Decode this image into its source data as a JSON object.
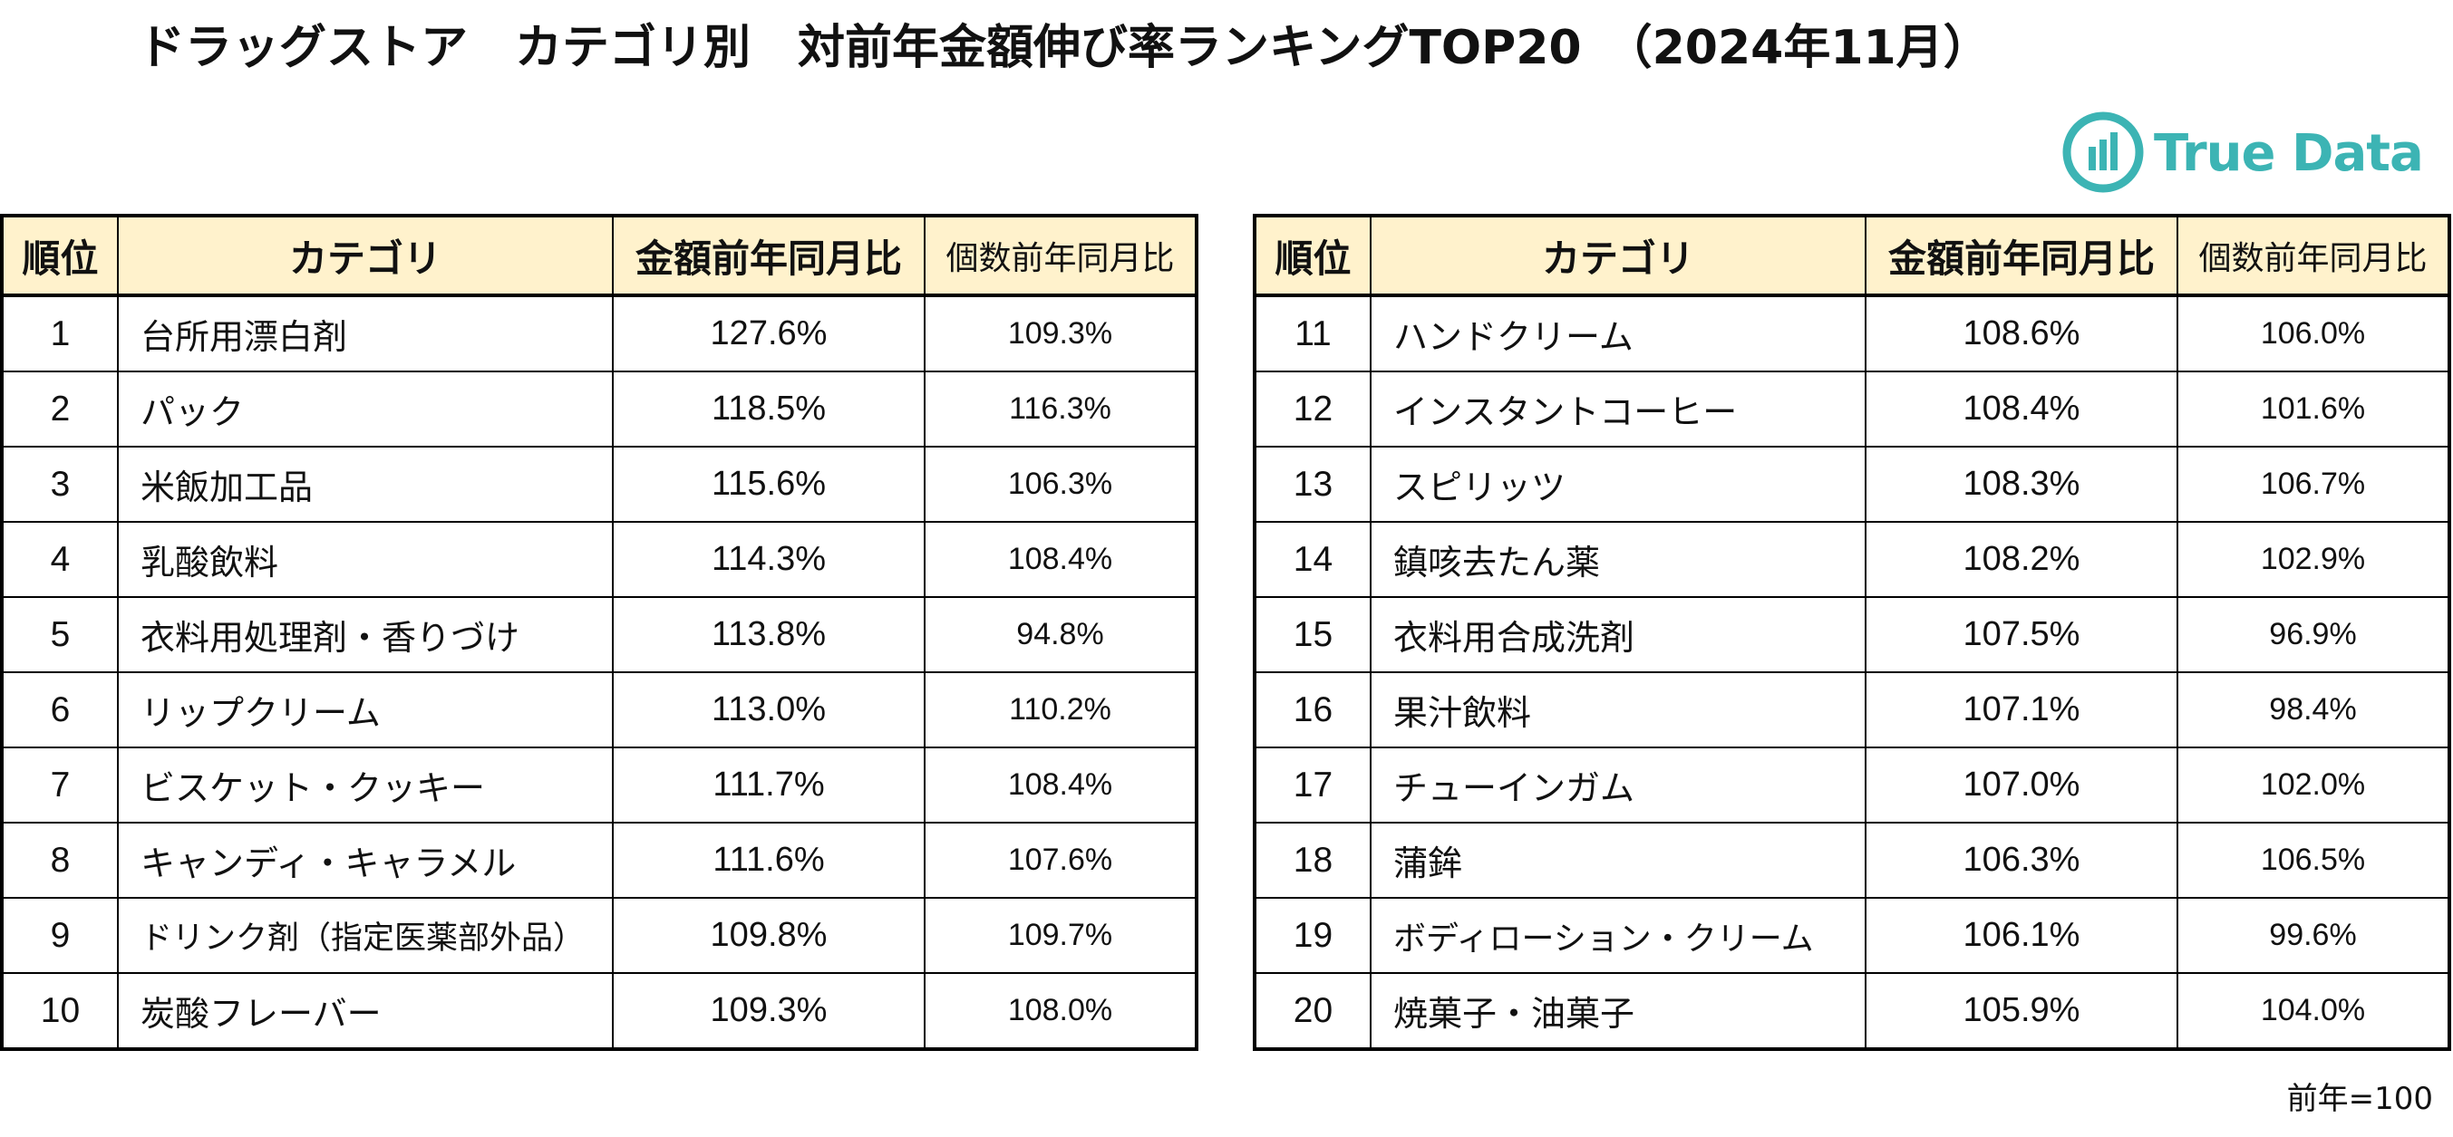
{
  "title": "ドラッグストア　カテゴリ別　対前年金額伸び率ランキングTOP20　（2024年11月）",
  "logo": {
    "text": "True Data",
    "icon": "truedata-logo-icon",
    "color": "#3cb4b4"
  },
  "colors": {
    "header_bg": "#fff2cc",
    "border": "#000000"
  },
  "tables": {
    "left": {
      "headers": [
        "順位",
        "カテゴリ",
        "金額前年同月比",
        "個数前年同月比"
      ],
      "rows": [
        {
          "rank": "1",
          "category": "台所用漂白剤",
          "value_yoy": "127.6%",
          "unit_yoy": "109.3%"
        },
        {
          "rank": "2",
          "category": "パック",
          "value_yoy": "118.5%",
          "unit_yoy": "116.3%"
        },
        {
          "rank": "3",
          "category": "米飯加工品",
          "value_yoy": "115.6%",
          "unit_yoy": "106.3%"
        },
        {
          "rank": "4",
          "category": "乳酸飲料",
          "value_yoy": "114.3%",
          "unit_yoy": "108.4%"
        },
        {
          "rank": "5",
          "category": "衣料用処理剤・香りづけ",
          "value_yoy": "113.8%",
          "unit_yoy": "94.8%"
        },
        {
          "rank": "6",
          "category": "リップクリーム",
          "value_yoy": "113.0%",
          "unit_yoy": "110.2%"
        },
        {
          "rank": "7",
          "category": "ビスケット・クッキー",
          "value_yoy": "111.7%",
          "unit_yoy": "108.4%"
        },
        {
          "rank": "8",
          "category": "キャンディ・キャラメル",
          "value_yoy": "111.6%",
          "unit_yoy": "107.6%"
        },
        {
          "rank": "9",
          "category": "ドリンク剤（指定医薬部外品）",
          "value_yoy": "109.8%",
          "unit_yoy": "109.7%"
        },
        {
          "rank": "10",
          "category": "炭酸フレーバー",
          "value_yoy": "109.3%",
          "unit_yoy": "108.0%"
        }
      ]
    },
    "right": {
      "headers": [
        "順位",
        "カテゴリ",
        "金額前年同月比",
        "個数前年同月比"
      ],
      "rows": [
        {
          "rank": "11",
          "category": "ハンドクリーム",
          "value_yoy": "108.6%",
          "unit_yoy": "106.0%"
        },
        {
          "rank": "12",
          "category": "インスタントコーヒー",
          "value_yoy": "108.4%",
          "unit_yoy": "101.6%"
        },
        {
          "rank": "13",
          "category": "スピリッツ",
          "value_yoy": "108.3%",
          "unit_yoy": "106.7%"
        },
        {
          "rank": "14",
          "category": "鎮咳去たん薬",
          "value_yoy": "108.2%",
          "unit_yoy": "102.9%"
        },
        {
          "rank": "15",
          "category": "衣料用合成洗剤",
          "value_yoy": "107.5%",
          "unit_yoy": "96.9%"
        },
        {
          "rank": "16",
          "category": "果汁飲料",
          "value_yoy": "107.1%",
          "unit_yoy": "98.4%"
        },
        {
          "rank": "17",
          "category": "チューインガム",
          "value_yoy": "107.0%",
          "unit_yoy": "102.0%"
        },
        {
          "rank": "18",
          "category": "蒲鉾",
          "value_yoy": "106.3%",
          "unit_yoy": "106.5%"
        },
        {
          "rank": "19",
          "category": "ボディローション・クリーム",
          "value_yoy": "106.1%",
          "unit_yoy": "99.6%"
        },
        {
          "rank": "20",
          "category": "焼菓子・油菓子",
          "value_yoy": "105.9%",
          "unit_yoy": "104.0%"
        }
      ]
    }
  },
  "footnote": "前年=100"
}
